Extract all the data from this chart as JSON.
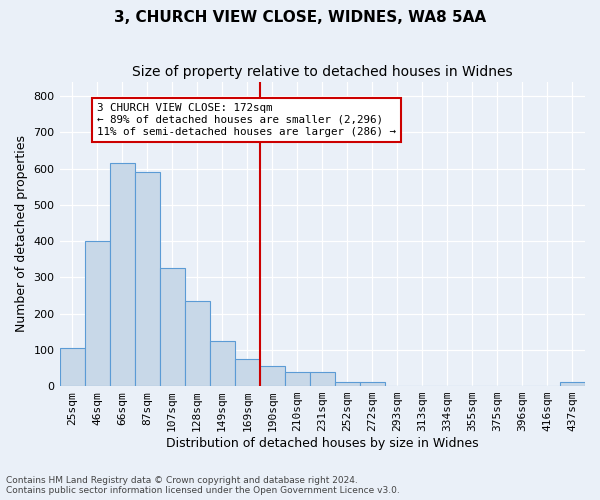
{
  "title1": "3, CHURCH VIEW CLOSE, WIDNES, WA8 5AA",
  "title2": "Size of property relative to detached houses in Widnes",
  "xlabel": "Distribution of detached houses by size in Widnes",
  "ylabel": "Number of detached properties",
  "footnote": "Contains HM Land Registry data © Crown copyright and database right 2024.\nContains public sector information licensed under the Open Government Licence v3.0.",
  "bin_labels": [
    "25sqm",
    "46sqm",
    "66sqm",
    "87sqm",
    "107sqm",
    "128sqm",
    "149sqm",
    "169sqm",
    "190sqm",
    "210sqm",
    "231sqm",
    "252sqm",
    "272sqm",
    "293sqm",
    "313sqm",
    "334sqm",
    "355sqm",
    "375sqm",
    "396sqm",
    "416sqm",
    "437sqm"
  ],
  "bar_values": [
    105,
    400,
    615,
    590,
    325,
    235,
    125,
    75,
    55,
    40,
    40,
    10,
    10,
    0,
    0,
    0,
    0,
    0,
    0,
    0,
    10
  ],
  "bar_color": "#c8d8e8",
  "bar_edge_color": "#5b9bd5",
  "vline_color": "#cc0000",
  "annotation_text": "3 CHURCH VIEW CLOSE: 172sqm\n← 89% of detached houses are smaller (2,296)\n11% of semi-detached houses are larger (286) →",
  "annotation_box_color": "#ffffff",
  "annotation_box_edge": "#cc0000",
  "ylim": [
    0,
    840
  ],
  "yticks": [
    0,
    100,
    200,
    300,
    400,
    500,
    600,
    700,
    800
  ],
  "bg_color": "#eaf0f8",
  "plot_bg_color": "#eaf0f8",
  "grid_color": "#ffffff",
  "title1_fontsize": 11,
  "title2_fontsize": 10,
  "tick_fontsize": 8,
  "label_fontsize": 9,
  "vline_pos": 7.5
}
